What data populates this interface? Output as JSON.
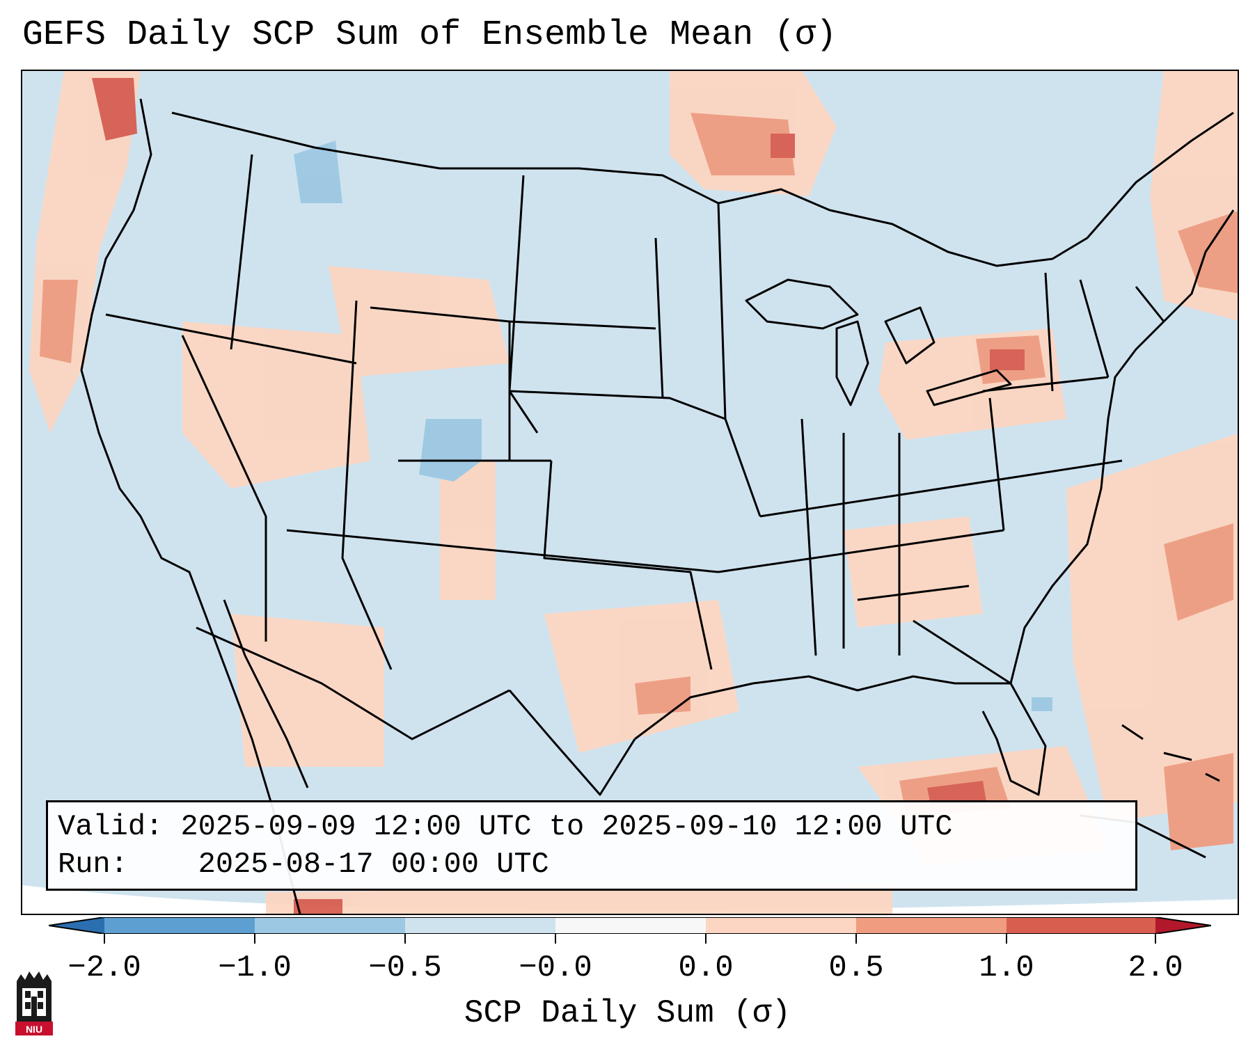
{
  "title": "GEFS Daily SCP Sum of Ensemble Mean (σ)",
  "info": {
    "valid_label": "Valid:",
    "valid_value": "2025-09-09 12:00 UTC to 2025-09-10 12:00 UTC",
    "run_label": "Run:",
    "run_value": "2025-08-17 00:00 UTC"
  },
  "colorbar": {
    "label": "SCP Daily Sum (σ)",
    "ticks": [
      "−2.0",
      "−1.0",
      "−0.5",
      "−0.0",
      "0.0",
      "0.5",
      "1.0",
      "2.0"
    ],
    "colors": [
      "#2b6fb0",
      "#5d9fd0",
      "#9dc8e3",
      "#cfe3ef",
      "#f7f7f7",
      "#fcd6c2",
      "#ef9c80",
      "#d85e50",
      "#b2182b"
    ]
  },
  "map": {
    "region": "Contiguous United States",
    "ocean_color": "#cfe3ef",
    "land_color": "#cfe3ef",
    "outline_color": "#000000"
  },
  "logo": {
    "text": "NIU",
    "color": "#c8102e"
  }
}
